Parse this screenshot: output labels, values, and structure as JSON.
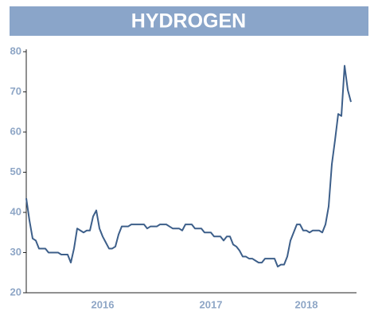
{
  "chart_data": {
    "type": "line",
    "title": "HYDROGEN",
    "categories": [
      null,
      null,
      null,
      null,
      null,
      null,
      null,
      null,
      null,
      null,
      null,
      null,
      null,
      null,
      null,
      null,
      null,
      null,
      null,
      null,
      null,
      null,
      null,
      null,
      "2016",
      null,
      null,
      null,
      null,
      null,
      null,
      null,
      null,
      null,
      null,
      null,
      null,
      null,
      null,
      null,
      null,
      null,
      null,
      null,
      null,
      null,
      null,
      null,
      null,
      null,
      null,
      null,
      null,
      null,
      null,
      null,
      null,
      null,
      "2017",
      null,
      null,
      null,
      null,
      null,
      null,
      null,
      null,
      null,
      null,
      null,
      null,
      null,
      null,
      null,
      null,
      null,
      null,
      null,
      null,
      null,
      null,
      null,
      null,
      null,
      null,
      null,
      null,
      null,
      "2018",
      null,
      null,
      null,
      null,
      null,
      null,
      null,
      null,
      null,
      null,
      null,
      null,
      null,
      null
    ],
    "values": [
      43.5,
      38,
      33.5,
      33,
      31,
      31,
      31,
      30,
      30,
      30,
      30,
      29.5,
      29.5,
      29.5,
      27.5,
      31,
      36,
      35.5,
      35,
      35.5,
      35.5,
      39,
      40.5,
      36,
      34,
      32.5,
      31,
      31,
      31.5,
      34.5,
      36.5,
      36.5,
      36.5,
      37,
      37,
      37,
      37,
      37,
      36,
      36.5,
      36.5,
      36.5,
      37,
      37,
      37,
      36.5,
      36,
      36,
      36,
      35.5,
      37,
      37,
      37,
      36,
      36,
      36,
      35,
      35,
      35,
      34,
      34,
      34,
      33,
      34,
      34,
      32,
      31.5,
      30.5,
      29,
      29,
      28.5,
      28.5,
      28,
      27.5,
      27.5,
      28.5,
      28.5,
      28.5,
      28.5,
      26.5,
      27,
      27,
      29,
      33,
      35,
      37,
      37,
      35.5,
      35.5,
      35,
      35.5,
      35.5,
      35.5,
      35,
      37,
      41.5,
      52,
      58,
      64.5,
      64,
      76.5,
      70.5,
      67.5
    ],
    "color": "#3d5f8a",
    "ylim": [
      20,
      80
    ],
    "yticks": [
      20,
      30,
      40,
      50,
      60,
      70,
      80
    ]
  }
}
